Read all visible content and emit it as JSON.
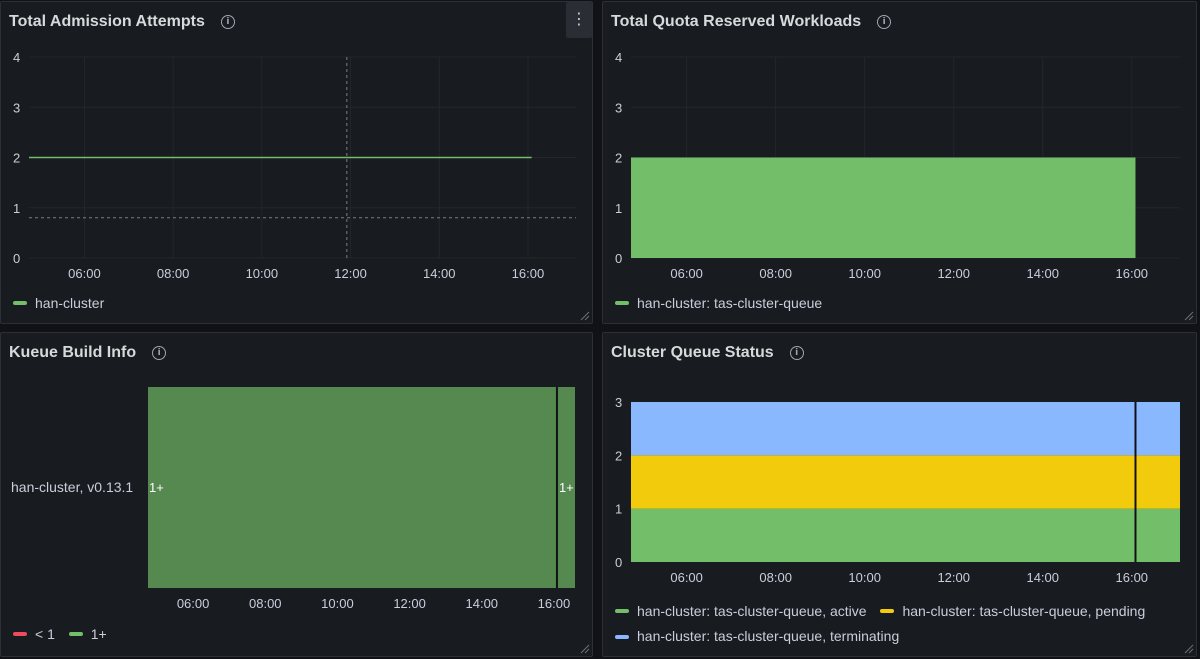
{
  "colors": {
    "green": "#73bf69",
    "yellow": "#f2cc0c",
    "blue": "#8ab8ff",
    "red": "#f2495c",
    "dark_green": "#56894f",
    "panel_bg": "#181b1f"
  },
  "panels": {
    "admission": {
      "title": "Total Admission Attempts",
      "legend": [
        {
          "label": "han-cluster",
          "color": "#73bf69"
        }
      ]
    },
    "quota": {
      "title": "Total Quota Reserved Workloads",
      "legend": [
        {
          "label": "han-cluster: tas-cluster-queue",
          "color": "#73bf69"
        }
      ]
    },
    "build": {
      "title": "Kueue Build Info",
      "row_label": "han-cluster, v0.13.1",
      "cell_label_left": "1+",
      "cell_label_right": "1+",
      "legend": [
        {
          "label": "< 1",
          "color": "#f2495c"
        },
        {
          "label": "1+",
          "color": "#73bf69"
        }
      ]
    },
    "status": {
      "title": "Cluster Queue Status",
      "legend": [
        {
          "label": "han-cluster: tas-cluster-queue, active",
          "color": "#73bf69"
        },
        {
          "label": "han-cluster: tas-cluster-queue, pending",
          "color": "#f2cc0c"
        },
        {
          "label": "han-cluster: tas-cluster-queue, terminating",
          "color": "#8ab8ff"
        }
      ]
    }
  },
  "chart_data": [
    {
      "type": "line",
      "title": "Total Admission Attempts",
      "x_ticks": [
        "06:00",
        "08:00",
        "10:00",
        "12:00",
        "14:00",
        "16:00"
      ],
      "y_ticks": [
        "0",
        "1",
        "2",
        "3",
        "4"
      ],
      "ylim": [
        0,
        4
      ],
      "xlim": [
        "04:45",
        "17:05"
      ],
      "series": [
        {
          "name": "han-cluster",
          "x": [
            "04:45",
            "16:05"
          ],
          "values": [
            2,
            2
          ],
          "color": "#73bf69"
        }
      ],
      "crosshair": {
        "x": "11:55",
        "y": 0.8
      },
      "grid": true
    },
    {
      "type": "area",
      "title": "Total Quota Reserved Workloads",
      "x_ticks": [
        "06:00",
        "08:00",
        "10:00",
        "12:00",
        "14:00",
        "16:00"
      ],
      "y_ticks": [
        "0",
        "1",
        "2",
        "3",
        "4"
      ],
      "ylim": [
        0,
        4
      ],
      "xlim": [
        "04:45",
        "17:05"
      ],
      "series": [
        {
          "name": "han-cluster: tas-cluster-queue",
          "x": [
            "04:45",
            "16:05"
          ],
          "values": [
            2,
            2
          ],
          "color": "#73bf69"
        }
      ],
      "grid": true
    },
    {
      "type": "heatmap",
      "title": "Kueue Build Info",
      "x_ticks": [
        "06:00",
        "08:00",
        "10:00",
        "12:00",
        "14:00",
        "16:00"
      ],
      "xlim": [
        "04:45",
        "16:35"
      ],
      "rows": [
        {
          "label": "han-cluster, v0.13.1",
          "segments": [
            {
              "from": "04:45",
              "to": "16:05",
              "value": "1+"
            },
            {
              "from": "16:05",
              "to": "16:35",
              "value": "1+"
            }
          ]
        }
      ],
      "legend": [
        "< 1",
        "1+"
      ]
    },
    {
      "type": "area",
      "title": "Cluster Queue Status",
      "stacked": true,
      "x_ticks": [
        "06:00",
        "08:00",
        "10:00",
        "12:00",
        "14:00",
        "16:00"
      ],
      "y_ticks": [
        "0",
        "1",
        "2",
        "3"
      ],
      "ylim": [
        0,
        3
      ],
      "xlim": [
        "04:45",
        "17:05"
      ],
      "series": [
        {
          "name": "han-cluster: tas-cluster-queue, active",
          "values": [
            1
          ],
          "color": "#73bf69"
        },
        {
          "name": "han-cluster: tas-cluster-queue, pending",
          "values": [
            1
          ],
          "color": "#f2cc0c"
        },
        {
          "name": "han-cluster: tas-cluster-queue, terminating",
          "values": [
            1
          ],
          "color": "#8ab8ff"
        }
      ],
      "marker_x": "16:05",
      "grid": false
    }
  ]
}
